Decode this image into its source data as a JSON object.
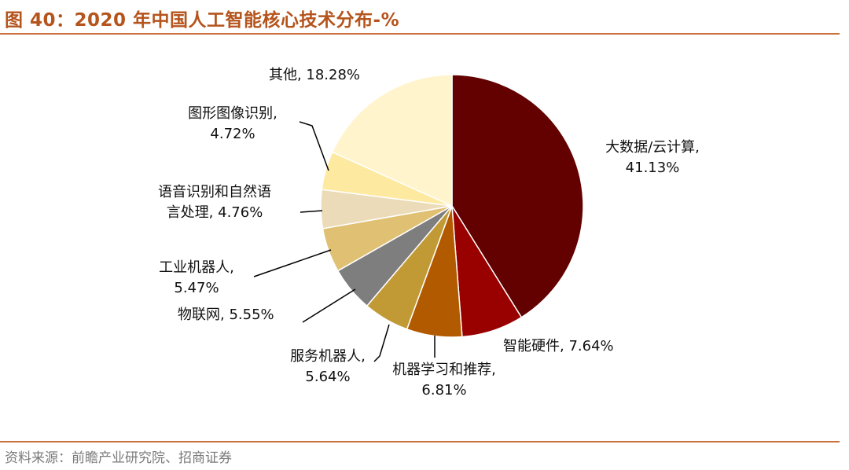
{
  "header": {
    "title": "图 40：2020 年中国人工智能核心技术分布-%"
  },
  "footer": {
    "source": "资料来源：前瞻产业研究院、招商证券"
  },
  "chart_data": {
    "type": "pie",
    "title": "图 40：2020 年中国人工智能核心技术分布-%",
    "slices": [
      {
        "name": "大数据/云计算",
        "value": 41.13,
        "color": "#630000",
        "text": [
          "大数据/云计算,",
          "41.13%"
        ]
      },
      {
        "name": "智能硬件",
        "value": 7.64,
        "color": "#990000",
        "text": [
          "智能硬件, 7.64%"
        ]
      },
      {
        "name": "机器学习和推荐",
        "value": 6.81,
        "color": "#b25a00",
        "text": [
          "机器学习和推荐,",
          "6.81%"
        ]
      },
      {
        "name": "服务机器人",
        "value": 5.64,
        "color": "#c29a35",
        "text": [
          "服务机器人,",
          "5.64%"
        ]
      },
      {
        "name": "物联网",
        "value": 5.55,
        "color": "#7e7e7e",
        "text": [
          "物联网, 5.55%"
        ]
      },
      {
        "name": "工业机器人",
        "value": 5.47,
        "color": "#e0c072",
        "text": [
          "工业机器人,",
          "5.47%"
        ]
      },
      {
        "name": "语音识别和自然语言处理",
        "value": 4.76,
        "color": "#ecdbb8",
        "text": [
          "语音识别和自然语",
          "言处理, 4.76%"
        ]
      },
      {
        "name": "图形图像识别",
        "value": 4.72,
        "color": "#fde9a0",
        "text": [
          "图形图像识别,",
          "4.72%"
        ]
      },
      {
        "name": "其他",
        "value": 18.28,
        "color": "#fff4cc",
        "text": [
          "其他, 18.28%"
        ]
      }
    ]
  }
}
